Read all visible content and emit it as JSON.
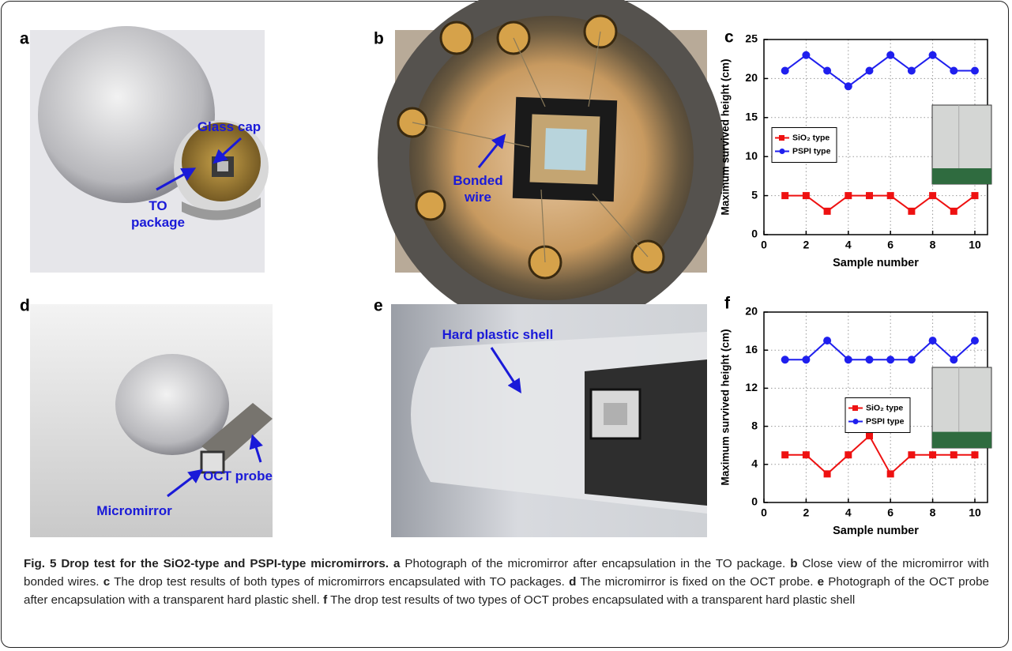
{
  "panels": [
    {
      "letter": "a",
      "annotations": [
        "Glass cap",
        "TO package"
      ]
    },
    {
      "letter": "b",
      "annotations": [
        "Bonded wire"
      ]
    },
    {
      "letter": "c"
    },
    {
      "letter": "d",
      "annotations": [
        "OCT probe",
        "Micromirror"
      ]
    },
    {
      "letter": "e",
      "annotations": [
        "Hard plastic shell"
      ]
    },
    {
      "letter": "f"
    }
  ],
  "chart_data": [
    {
      "type": "line",
      "xlabel": "Sample number",
      "ylabel": "Maximum survived height (cm)",
      "x": [
        1,
        2,
        3,
        4,
        5,
        6,
        7,
        8,
        9,
        10
      ],
      "xlim": [
        0,
        10.6
      ],
      "xticks": [
        0,
        2,
        4,
        6,
        8,
        10
      ],
      "ylim": [
        0,
        25
      ],
      "yticks": [
        0,
        5,
        10,
        15,
        20,
        25
      ],
      "grid": true,
      "legend": "center left",
      "series": [
        {
          "name": "SiO₂ type",
          "color": "#ee1111",
          "marker": "square",
          "values": [
            5,
            5,
            3,
            5,
            5,
            5,
            3,
            5,
            3,
            5
          ]
        },
        {
          "name": "PSPI type",
          "color": "#1f1fee",
          "marker": "circle",
          "values": [
            21,
            23,
            21,
            19,
            21,
            23,
            21,
            23,
            21,
            21
          ]
        }
      ]
    },
    {
      "type": "line",
      "xlabel": "Sample number",
      "ylabel": "Maximum survived height (cm)",
      "x": [
        1,
        2,
        3,
        4,
        5,
        6,
        7,
        8,
        9,
        10
      ],
      "xlim": [
        0,
        10.6
      ],
      "xticks": [
        0,
        2,
        4,
        6,
        8,
        10
      ],
      "ylim": [
        0,
        20
      ],
      "yticks": [
        0,
        4,
        8,
        12,
        16,
        20
      ],
      "grid": true,
      "legend": "center right",
      "series": [
        {
          "name": "SiO₂ type",
          "color": "#ee1111",
          "marker": "square",
          "values": [
            5,
            5,
            3,
            5,
            7,
            3,
            5,
            5,
            5,
            5
          ]
        },
        {
          "name": "PSPI type",
          "color": "#1f1fee",
          "marker": "circle",
          "values": [
            15,
            15,
            17,
            15,
            15,
            15,
            15,
            17,
            15,
            17
          ]
        }
      ]
    }
  ],
  "caption": {
    "title": "Fig. 5 Drop test for the SiO2-type and PSPI-type micromirrors.",
    "parts": [
      {
        "letter": "a",
        "text": "Photograph of the micromirror after encapsulation in the TO package."
      },
      {
        "letter": "b",
        "text": "Close view of the micromirror with bonded wires."
      },
      {
        "letter": "c",
        "text": "The drop test results of both types of micromirrors encapsulated with TO packages."
      },
      {
        "letter": "d",
        "text": "The micromirror is fixed on the OCT probe."
      },
      {
        "letter": "e",
        "text": "Photograph of the OCT probe after encapsulation with a transparent hard plastic shell."
      },
      {
        "letter": "f",
        "text": "The drop test results of two types of OCT probes encapsulated with a transparent hard plastic shell"
      }
    ]
  }
}
